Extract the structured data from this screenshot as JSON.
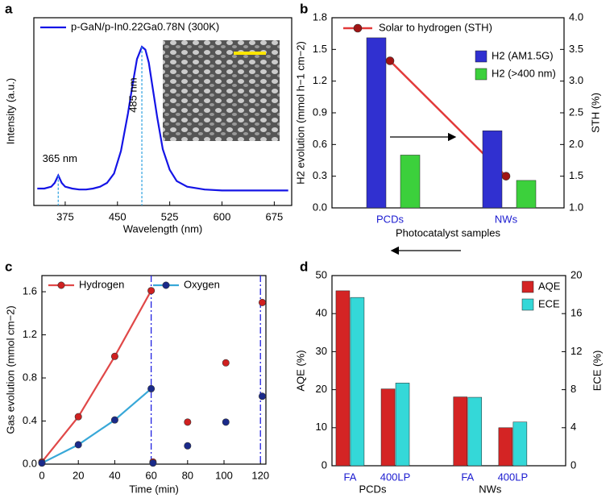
{
  "chart_data": [
    {
      "type": "line",
      "label": "a",
      "xlabel": "Wavelength (nm)",
      "ylabel": "Intensity (a.u.)",
      "xlim": [
        330,
        700
      ],
      "xticks": [
        375,
        450,
        525,
        600,
        675
      ],
      "ylim": [
        0,
        1
      ],
      "series": [
        {
          "name": "p-GaN/p-In0.22Ga0.78N (300K)",
          "color": "#1414e6",
          "x": [
            335,
            345,
            355,
            360,
            365,
            370,
            375,
            385,
            395,
            405,
            415,
            425,
            435,
            445,
            455,
            465,
            472,
            478,
            485,
            490,
            495,
            500,
            507,
            515,
            525,
            535,
            550,
            575,
            600,
            650,
            695
          ],
          "values": [
            0.09,
            0.09,
            0.1,
            0.12,
            0.16,
            0.12,
            0.1,
            0.09,
            0.085,
            0.085,
            0.09,
            0.1,
            0.12,
            0.17,
            0.29,
            0.49,
            0.65,
            0.78,
            0.845,
            0.83,
            0.76,
            0.64,
            0.47,
            0.3,
            0.19,
            0.13,
            0.1,
            0.085,
            0.08,
            0.08,
            0.08
          ]
        }
      ],
      "annotations": [
        {
          "text": "365 nm",
          "x": 365
        },
        {
          "text": "485 nm",
          "x": 485
        }
      ]
    },
    {
      "type": "bar",
      "label": "b",
      "xlabel": "Photocatalyst samples",
      "ylabel": "H2 evolution (mmol h−1 cm−2)",
      "y2label": "STH (%)",
      "categories": [
        "PCDs",
        "NWs"
      ],
      "ylim": [
        0,
        1.8
      ],
      "yticks": [
        {
          "value": 0,
          "label": "0.0"
        },
        0.3,
        0.6,
        0.9,
        1.2,
        1.5,
        1.8
      ],
      "y2lim": [
        1,
        4
      ],
      "y2ticks": [
        {
          "value": 1,
          "label": "1.0"
        },
        1.5,
        {
          "value": 2,
          "label": "2.0"
        },
        2.5,
        {
          "value": 3,
          "label": "3.0"
        },
        3.5,
        {
          "value": 4,
          "label": "4.0"
        }
      ],
      "series": [
        {
          "name": "Solar to hydrogen (STH)",
          "color": "#e23a3a",
          "marker_color": "#a01414",
          "style": "line",
          "axis": "y2",
          "values": [
            3.32,
            1.5
          ]
        },
        {
          "name": "H2 (AM1.5G)",
          "color": "#3030d0",
          "values": [
            1.61,
            0.73
          ]
        },
        {
          "name": "H2 (>400 nm)",
          "color": "#3cd03c",
          "values": [
            0.5,
            0.26
          ]
        }
      ]
    },
    {
      "type": "line",
      "label": "c",
      "xlabel": "Time (min)",
      "ylabel": "Gas evolution (mmol cm−2)",
      "xlim": [
        0,
        123
      ],
      "xticks": [
        0,
        20,
        40,
        60,
        80,
        100,
        120
      ],
      "ylim": [
        0,
        1.75
      ],
      "yticks": [
        {
          "value": 0,
          "label": "0.0"
        },
        0.4,
        0.8,
        1.2,
        1.6
      ],
      "vlines": [
        60,
        120
      ],
      "vline_color": "#2020e0",
      "x": [
        0,
        20,
        40,
        60,
        61,
        80,
        101,
        121
      ],
      "series": [
        {
          "name": "Hydrogen",
          "color": "#e04848",
          "marker_color": "#d02020",
          "values": [
            0.02,
            0.44,
            1.0,
            1.61,
            0.02,
            0.39,
            0.94,
            1.5
          ]
        },
        {
          "name": "Oxygen",
          "color": "#38a8d8",
          "marker_color": "#1a2a8a",
          "values": [
            0.01,
            0.18,
            0.41,
            0.7,
            0.01,
            0.17,
            0.39,
            0.63
          ]
        }
      ]
    },
    {
      "type": "bar",
      "label": "d",
      "ylabel": "AQE (%)",
      "y2label": "ECE (%)",
      "categories": [
        "FA",
        "400LP",
        "FA",
        "400LP"
      ],
      "group_labels": [
        "PCDs",
        "NWs"
      ],
      "ylim": [
        0,
        50
      ],
      "yticks": [
        0,
        10,
        20,
        30,
        40,
        50
      ],
      "y2lim": [
        0,
        20
      ],
      "y2ticks": [
        0,
        4,
        8,
        12,
        16,
        20
      ],
      "series": [
        {
          "name": "AQE",
          "color": "#d42424",
          "values": [
            46,
            20.2,
            18.1,
            10
          ]
        },
        {
          "name": "ECE",
          "color": "#34d8d8",
          "axis": "y2",
          "values": [
            17.7,
            8.7,
            7.2,
            4.6
          ]
        }
      ]
    }
  ]
}
